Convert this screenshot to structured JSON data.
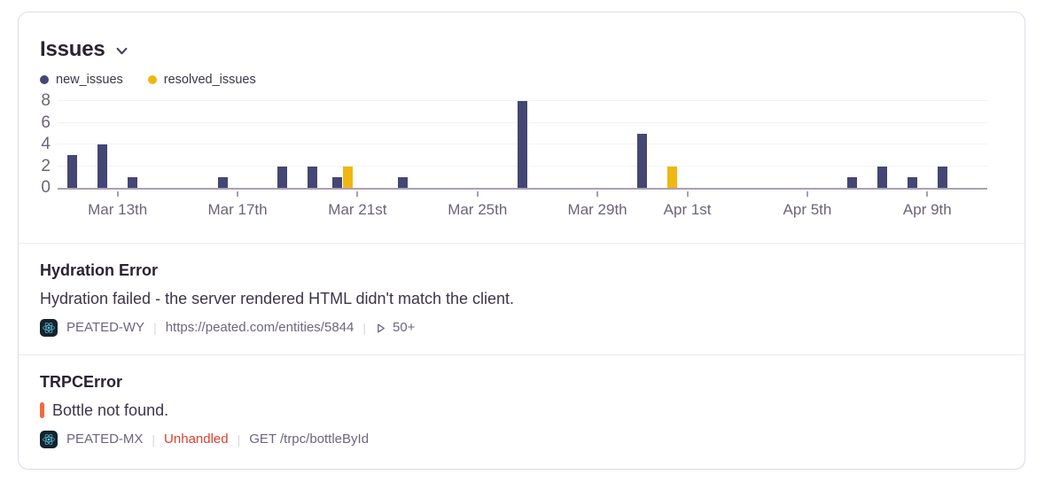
{
  "widget": {
    "title": "Issues"
  },
  "chart_data": {
    "type": "bar",
    "title": "Issues",
    "categories": [
      "Mar 11",
      "Mar 12",
      "Mar 13",
      "Mar 14",
      "Mar 15",
      "Mar 16",
      "Mar 17",
      "Mar 18",
      "Mar 19",
      "Mar 20",
      "Mar 21",
      "Mar 22",
      "Mar 23",
      "Mar 24",
      "Mar 25",
      "Mar 26",
      "Mar 27",
      "Mar 28",
      "Mar 29",
      "Mar 30",
      "Mar 31",
      "Apr 1",
      "Apr 2",
      "Apr 3",
      "Apr 4",
      "Apr 5",
      "Apr 6",
      "Apr 7",
      "Apr 8",
      "Apr 9",
      "Apr 10"
    ],
    "series": [
      {
        "name": "new_issues",
        "color": "#444674",
        "values": [
          3,
          4,
          1,
          0,
          0,
          1,
          0,
          2,
          2,
          1,
          0,
          1,
          0,
          0,
          0,
          8,
          0,
          0,
          0,
          5,
          0,
          0,
          0,
          0,
          0,
          0,
          1,
          2,
          1,
          2,
          0
        ]
      },
      {
        "name": "resolved_issues",
        "color": "#f0b712",
        "values": [
          0,
          0,
          0,
          0,
          0,
          0,
          0,
          0,
          0,
          2,
          0,
          0,
          0,
          0,
          0,
          0,
          0,
          0,
          0,
          0,
          2,
          0,
          0,
          0,
          0,
          0,
          0,
          0,
          0,
          0,
          0
        ]
      }
    ],
    "ylim": [
      0,
      8
    ],
    "y_ticks": [
      0,
      2,
      4,
      6,
      8
    ],
    "x_ticks": [
      {
        "index": 2,
        "label": "Mar 13th"
      },
      {
        "index": 6,
        "label": "Mar 17th"
      },
      {
        "index": 10,
        "label": "Mar 21st"
      },
      {
        "index": 14,
        "label": "Mar 25th"
      },
      {
        "index": 18,
        "label": "Mar 29th"
      },
      {
        "index": 21,
        "label": "Apr 1st"
      },
      {
        "index": 25,
        "label": "Apr 5th"
      },
      {
        "index": 29,
        "label": "Apr 9th"
      }
    ],
    "grid": "horizontal",
    "legend_position": "top-left"
  },
  "issues": [
    {
      "title": "Hydration Error",
      "message": "Hydration failed - the server rendered HTML didn't match the client.",
      "project": "PEATED-WY",
      "url": "https://peated.com/entities/5844",
      "events": "50+",
      "separator": "|"
    },
    {
      "title": "TRPCError",
      "message": "Bottle not found.",
      "project": "PEATED-MX",
      "status": "Unhandled",
      "transaction": "GET /trpc/bottleById",
      "separator": "|"
    }
  ],
  "colors": {
    "new_issues": "#444674",
    "resolved_issues": "#f0b712",
    "unhandled_text": "#e03e2e",
    "error_level_bar": "#f4683d",
    "axis_line": "#a9a0b5",
    "axis_label": "#6d6379",
    "react_icon_accent": "#5fc9e7",
    "react_icon_bg": "#15232d"
  }
}
